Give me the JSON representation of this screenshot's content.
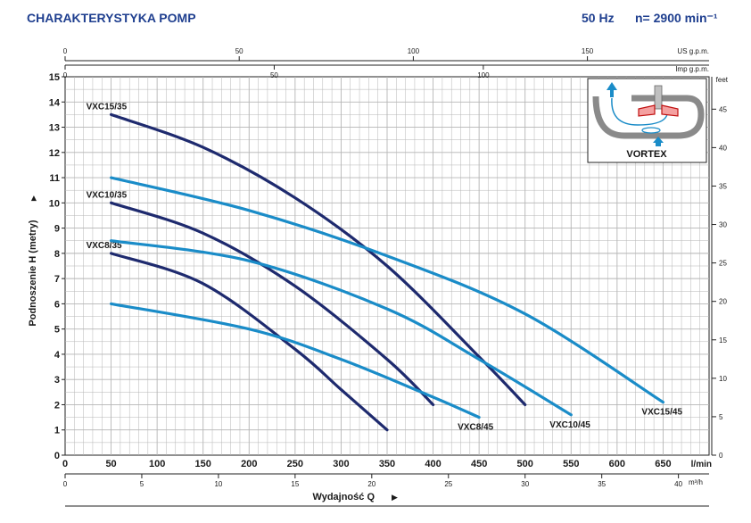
{
  "header": {
    "title": "CHARAKTERYSTYKA POMP",
    "freq": "50 Hz",
    "speed": "n= 2900 min⁻¹"
  },
  "inset": {
    "label": "VORTEX"
  },
  "chart_data": {
    "type": "line",
    "title": "CHARAKTERYSTYKA POMP",
    "xlabel": "Wydajność Q",
    "ylabel": "Podnoszenie H (metry)",
    "xunit": "l/min",
    "xlim": [
      0,
      700
    ],
    "ylim": [
      0,
      15
    ],
    "x_ticks": [
      0,
      50,
      100,
      150,
      200,
      250,
      300,
      350,
      400,
      450,
      500,
      550,
      600,
      650
    ],
    "y_ticks": [
      0,
      1,
      2,
      3,
      4,
      5,
      6,
      7,
      8,
      9,
      10,
      11,
      12,
      13,
      14,
      15
    ],
    "secondary_axes": {
      "us_gpm": {
        "label": "US g.p.m.",
        "ticks": [
          0,
          50,
          100,
          150
        ]
      },
      "imp_gpm": {
        "label": "Imp g.p.m.",
        "ticks": [
          0,
          50,
          100
        ]
      },
      "m3h": {
        "label": "m³/h",
        "ticks": [
          0,
          5,
          10,
          15,
          20,
          25,
          30,
          35,
          40
        ]
      },
      "feet": {
        "label": "feet",
        "ticks": [
          0,
          5,
          10,
          15,
          20,
          25,
          30,
          35,
          40,
          45
        ]
      }
    },
    "grid": true,
    "series": [
      {
        "name": "VXC15/35",
        "color": "#1e2a6e",
        "x": [
          50,
          150,
          250,
          350,
          450,
          500
        ],
        "y": [
          13.5,
          12.2,
          10.2,
          7.5,
          3.9,
          2.0
        ]
      },
      {
        "name": "VXC10/35",
        "color": "#1e2a6e",
        "x": [
          50,
          150,
          250,
          350,
          400
        ],
        "y": [
          10.0,
          8.8,
          6.7,
          3.8,
          2.0
        ]
      },
      {
        "name": "VXC8/35",
        "color": "#1e2a6e",
        "x": [
          50,
          150,
          250,
          300,
          350
        ],
        "y": [
          8.0,
          6.8,
          4.2,
          2.6,
          1.0
        ]
      },
      {
        "name": "VXC15/45",
        "color": "#1a8cc8",
        "x": [
          50,
          200,
          350,
          500,
          650
        ],
        "y": [
          11.0,
          9.7,
          7.9,
          5.6,
          2.1
        ]
      },
      {
        "name": "VXC10/45",
        "color": "#1a8cc8",
        "x": [
          50,
          200,
          350,
          450,
          550
        ],
        "y": [
          8.5,
          7.7,
          5.8,
          3.8,
          1.6
        ]
      },
      {
        "name": "VXC8/45",
        "color": "#1a8cc8",
        "x": [
          50,
          200,
          300,
          400,
          450
        ],
        "y": [
          6.0,
          5.0,
          3.8,
          2.3,
          1.5
        ]
      }
    ]
  }
}
